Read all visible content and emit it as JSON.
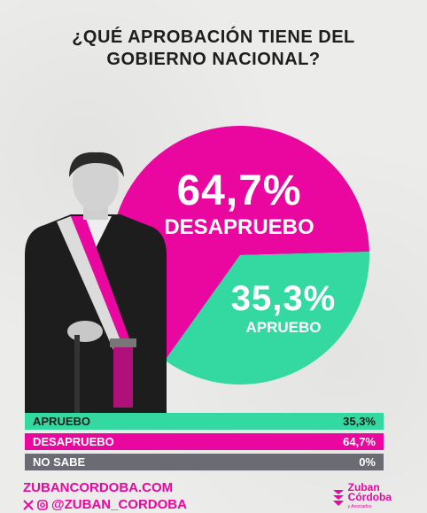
{
  "title": {
    "line1": "¿QUÉ APROBACIÓN TIENE DEL",
    "line2": "GOBIERNO NACIONAL?"
  },
  "colors": {
    "desaprueba": "#e9079f",
    "aprueba": "#34d9a1",
    "no_sabe": "#6b6b73"
  },
  "chart_data": {
    "type": "pie",
    "title": "¿QUÉ APROBACIÓN TIENE DEL GOBIERNO NACIONAL?",
    "slices": [
      {
        "label": "DESAPRUEBO",
        "value": 64.7,
        "display": "64,7%"
      },
      {
        "label": "APRUEBO",
        "value": 35.3,
        "display": "35,3%"
      }
    ]
  },
  "table": {
    "rows": [
      {
        "label": "APRUEBO",
        "value": "35,3%"
      },
      {
        "label": "DESAPRUEBO",
        "value": "64,7%"
      },
      {
        "label": "NO SABE",
        "value": "0%"
      }
    ]
  },
  "footer": {
    "website": "ZUBANCORDOBA.COM",
    "handle": "@ZUBAN_CORDOBA",
    "x_icon": "x-icon",
    "instagram_icon": "instagram-icon"
  },
  "brand": {
    "line1": "Zuban",
    "line2": "Córdoba",
    "line3": "y Asociados"
  }
}
